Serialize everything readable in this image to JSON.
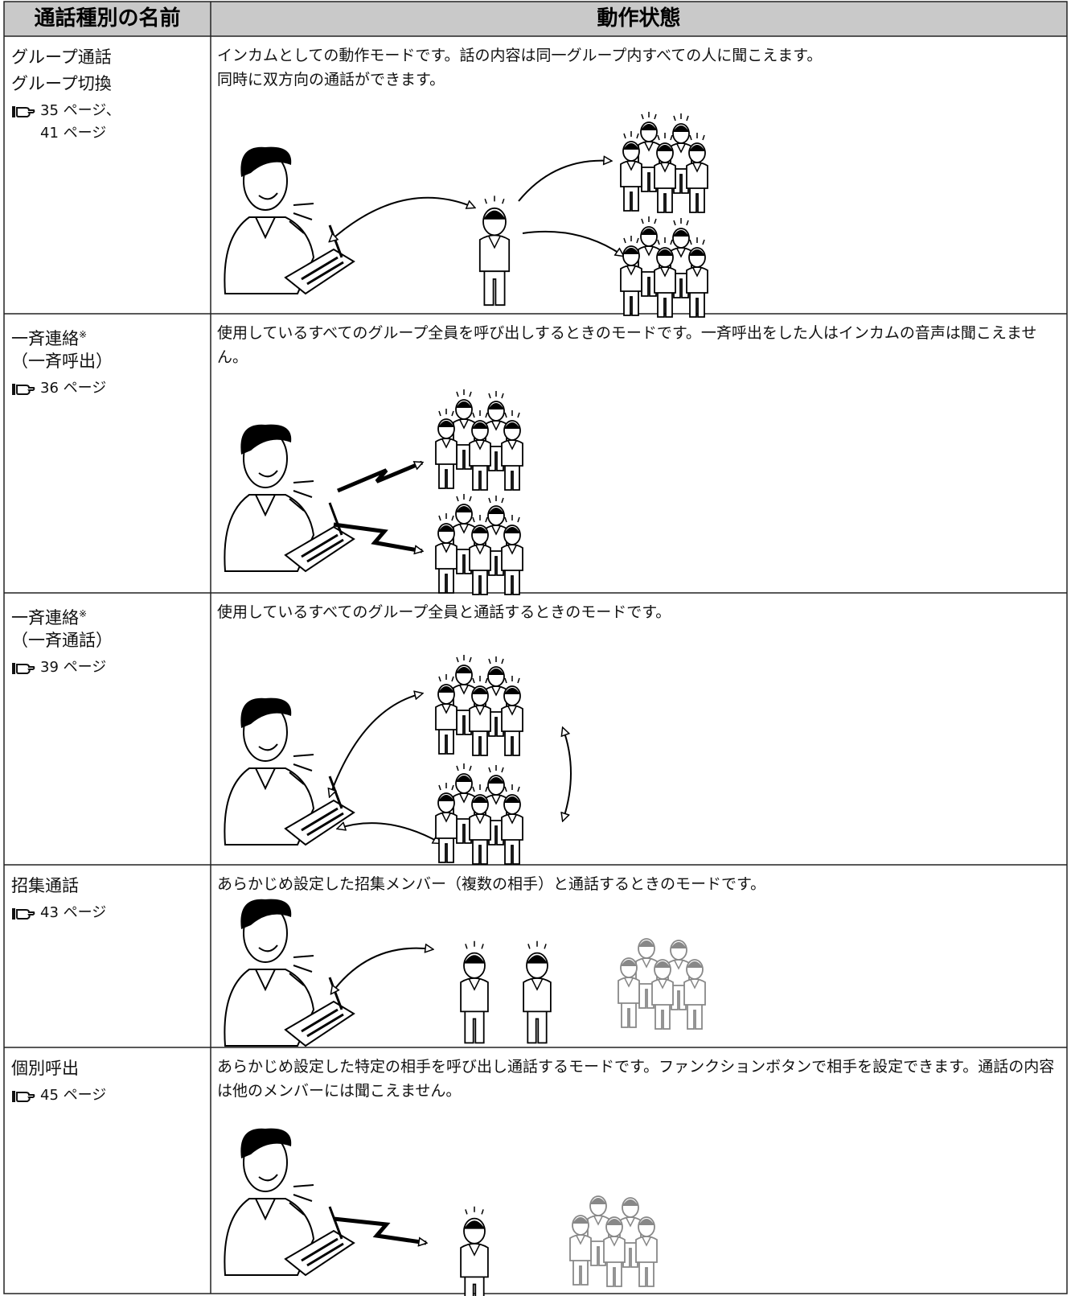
{
  "table": {
    "header": [
      "通話種別の名前",
      "動作状態"
    ],
    "rows": [
      {
        "name": [
          "グループ通話",
          "グループ切換"
        ],
        "ref": [
          "35 ページ、",
          "41 ページ"
        ],
        "description": [
          "インカムとしての動作モードです。話の内容は同一グループ内すべての人に聞こえます。",
          "同時に双方向の通話ができます。"
        ]
      },
      {
        "name": [
          "一斉連絡",
          "（一斉呼出）"
        ],
        "mark": "※",
        "ref": [
          "36 ページ"
        ],
        "description": [
          "使用しているすべてのグループ全員を呼び出しするときのモードです。一斉呼出をした人はインカムの音声は聞こえません。"
        ]
      },
      {
        "name": [
          "一斉連絡",
          "（一斉通話）"
        ],
        "mark": "※",
        "ref": [
          "39 ページ"
        ],
        "description": [
          "使用しているすべてのグループ全員と通話するときのモードです。"
        ]
      },
      {
        "name": [
          "招集通話"
        ],
        "ref": [
          "43 ページ"
        ],
        "description": [
          "あらかじめ設定した招集メンバー（複数の相手）と通話するときのモードです。"
        ]
      },
      {
        "name": [
          "個別呼出"
        ],
        "ref": [
          "45 ページ"
        ],
        "description": [
          "あらかじめ設定した特定の相手を呼び出し通話するモードです。ファンクションボタンで相手を設定できます。通話の内容は他のメンバーには聞こえません。"
        ]
      }
    ]
  }
}
